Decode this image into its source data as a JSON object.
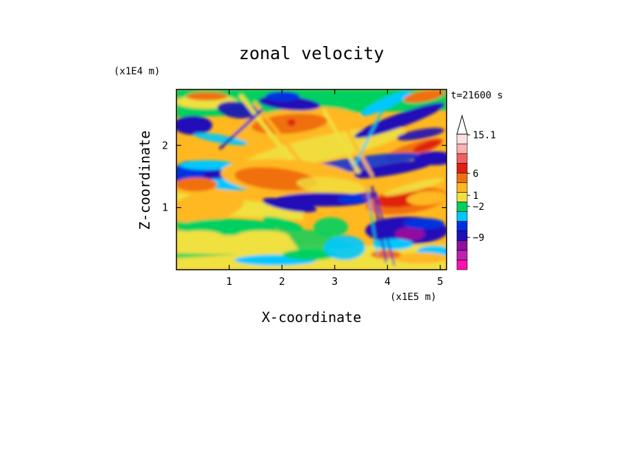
{
  "chart_data": {
    "type": "heatmap",
    "title": "zonal velocity",
    "xlabel": "X-coordinate",
    "ylabel": "Z-coordinate",
    "x_unit": "(x1E5 m)",
    "y_unit": "(x1E4 m)",
    "time_label": "t=21600 s",
    "xlim": [
      0,
      5.12
    ],
    "ylim": [
      0,
      2.9
    ],
    "x_ticks": [
      {
        "value": 1,
        "label": "1"
      },
      {
        "value": 2,
        "label": "2"
      },
      {
        "value": 3,
        "label": "3"
      },
      {
        "value": 4,
        "label": "4"
      },
      {
        "value": 5,
        "label": "5"
      }
    ],
    "y_ticks": [
      {
        "value": 1,
        "label": "1"
      },
      {
        "value": 2,
        "label": "2"
      }
    ],
    "colorbar": {
      "colors": [
        "#ff10b0",
        "#c020b0",
        "#9010a0",
        "#2010b8",
        "#0030e0",
        "#00c8ff",
        "#00d060",
        "#f0e040",
        "#ffb820",
        "#f07010",
        "#e02010",
        "#f06060",
        "#ffb0b0",
        "#ffe0e0"
      ],
      "labels": [
        {
          "value": -9,
          "label": "−9"
        },
        {
          "value": -2,
          "label": "−2"
        },
        {
          "value": 1,
          "label": "1"
        },
        {
          "value": 6,
          "label": "6"
        },
        {
          "value": 15.1,
          "label": "15.1"
        }
      ]
    }
  }
}
